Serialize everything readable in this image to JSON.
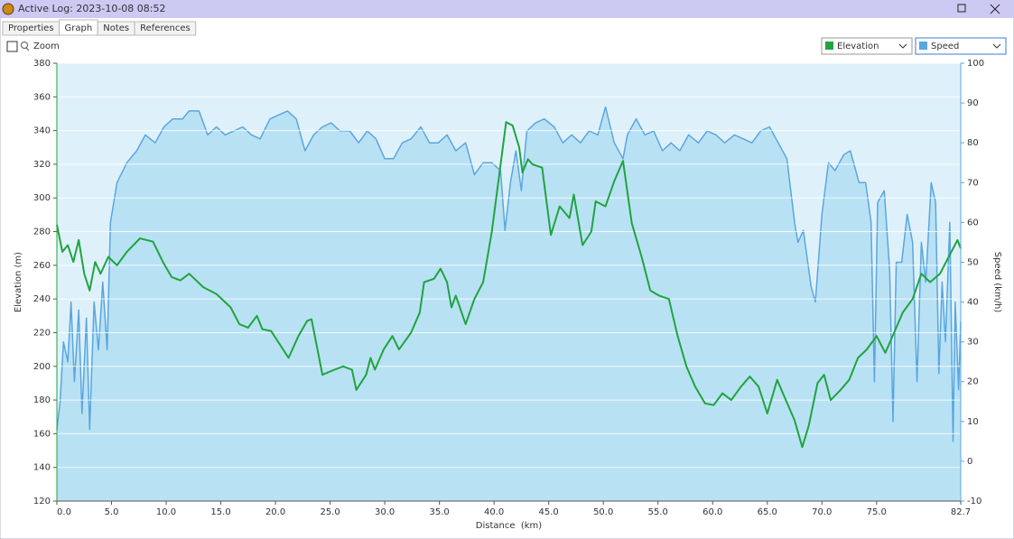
{
  "window_title": "Active Log: 2023-10-08 08:52",
  "tabs": [
    "Properties",
    "Graph",
    "Notes",
    "References"
  ],
  "zoom_label": "Zoom",
  "chart_data": {
    "type": "line",
    "xlabel": "Distance  (km)",
    "ylabel": "Elevation (m)",
    "y2label": "Speed (km/h)",
    "xlim": [
      0,
      82.7
    ],
    "xticks": [
      {
        "value": 0,
        "label": "0.0"
      },
      {
        "value": 5,
        "label": "5.0"
      },
      {
        "value": 10,
        "label": "10.0"
      },
      {
        "value": 15,
        "label": "15.0"
      },
      {
        "value": 20,
        "label": "20.0"
      },
      {
        "value": 25,
        "label": "25.0"
      },
      {
        "value": 30,
        "label": "30.0"
      },
      {
        "value": 35,
        "label": "35.0"
      },
      {
        "value": 40,
        "label": "40.0"
      },
      {
        "value": 45,
        "label": "45.0"
      },
      {
        "value": 50,
        "label": "50.0"
      },
      {
        "value": 55,
        "label": "55.0"
      },
      {
        "value": 60,
        "label": "60.0"
      },
      {
        "value": 65,
        "label": "65.0"
      },
      {
        "value": 70,
        "label": "70.0"
      },
      {
        "value": 75,
        "label": "75.0"
      },
      82.7
    ],
    "ylim": [
      120,
      380
    ],
    "yticks": [
      120,
      140,
      160,
      180,
      200,
      220,
      240,
      260,
      280,
      300,
      320,
      340,
      360,
      380
    ],
    "y2lim": [
      -10,
      100
    ],
    "y2ticks": [
      -10,
      0,
      10,
      20,
      30,
      40,
      50,
      60,
      70,
      80,
      90,
      100
    ],
    "grid": true,
    "series": [
      {
        "name": "Speed",
        "color": "#5aa6df",
        "fill": "#b3def2",
        "axis": "y2",
        "x": [
          0,
          0.3,
          0.6,
          1,
          1.3,
          1.6,
          2,
          2.3,
          2.7,
          3,
          3.4,
          3.8,
          4.2,
          4.6,
          4.9,
          5.5,
          6.4,
          7.3,
          8.1,
          9,
          9.8,
          10.6,
          11.5,
          12.1,
          13,
          13.8,
          14.6,
          15.4,
          16.2,
          17,
          17.8,
          18.6,
          19.5,
          20.3,
          21.1,
          21.9,
          22.7,
          23.5,
          24.3,
          25.1,
          25.9,
          26.8,
          27.6,
          28.4,
          29.2,
          30,
          30.8,
          31.6,
          32.4,
          33.3,
          34.1,
          34.9,
          35.7,
          36.5,
          37.4,
          38.2,
          39,
          39.8,
          40.6,
          41,
          41.5,
          42,
          42.5,
          43,
          43.8,
          44.6,
          45.5,
          46.3,
          47.1,
          47.9,
          48.7,
          49.5,
          50.2,
          51,
          51.8,
          52.2,
          53,
          53.8,
          54.6,
          55.4,
          56.2,
          57,
          57.8,
          58.7,
          59.5,
          60.3,
          61.1,
          62,
          62.8,
          63.6,
          64.4,
          65.2,
          66,
          66.8,
          67.5,
          67.8,
          68.3,
          69,
          69.4,
          70,
          70.6,
          71.2,
          72,
          72.6,
          73.4,
          74,
          74.5,
          74.8,
          75.1,
          75.7,
          76.2,
          76.5,
          76.8,
          77.3,
          77.8,
          78.3,
          78.7,
          79.1,
          79.5,
          80,
          80.4,
          80.7,
          81,
          81.3,
          81.7,
          82,
          82.2,
          82.5,
          82.7
        ],
        "values": [
          8,
          15,
          30,
          25,
          40,
          20,
          38,
          12,
          36,
          8,
          40,
          28,
          45,
          28,
          60,
          70,
          75,
          78,
          82,
          80,
          84,
          86,
          86,
          88,
          88,
          82,
          84,
          82,
          83,
          84,
          82,
          81,
          86,
          87,
          88,
          86,
          78,
          82,
          84,
          85,
          83,
          83,
          80,
          83,
          81,
          76,
          76,
          80,
          81,
          84,
          80,
          80,
          82,
          78,
          80,
          72,
          75,
          75,
          73,
          58,
          70,
          78,
          68,
          83,
          85,
          86,
          84,
          80,
          82,
          80,
          83,
          82,
          89,
          80,
          76,
          82,
          86,
          82,
          83,
          78,
          80,
          78,
          82,
          80,
          83,
          82,
          80,
          82,
          81,
          80,
          83,
          84,
          80,
          76,
          60,
          55,
          58,
          44,
          40,
          62,
          75,
          73,
          77,
          78,
          70,
          70,
          60,
          20,
          65,
          68,
          48,
          10,
          50,
          50,
          62,
          55,
          20,
          55,
          45,
          70,
          65,
          22,
          45,
          30,
          60,
          5,
          40,
          18,
          35
        ]
      },
      {
        "name": "Elevation",
        "color": "#1fa43f",
        "axis": "y",
        "x": [
          0,
          0.5,
          1,
          1.5,
          2,
          2.5,
          3,
          3.5,
          4,
          4.7,
          5.5,
          6.4,
          7.6,
          8.8,
          9.7,
          10.5,
          11.3,
          12.1,
          13.4,
          14.6,
          15.9,
          16.7,
          17.5,
          18.3,
          18.8,
          19.6,
          20.4,
          21.2,
          22.1,
          22.9,
          23.3,
          24.3,
          25.4,
          26.2,
          27,
          27.4,
          28.3,
          28.7,
          29.1,
          29.9,
          30.7,
          31.3,
          32.4,
          33.2,
          33.6,
          34.5,
          35.1,
          35.7,
          36.1,
          36.5,
          37.4,
          38.2,
          39,
          39.8,
          40.4,
          41.1,
          41.7,
          42.3,
          42.6,
          43.1,
          43.5,
          44.4,
          45.2,
          46,
          46.9,
          47.3,
          48.1,
          48.9,
          49.3,
          50.2,
          51,
          51.8,
          52.6,
          53.5,
          54.3,
          55.1,
          56,
          56.8,
          57.6,
          58.4,
          59.3,
          60.1,
          60.9,
          61.7,
          62.6,
          63.4,
          64.2,
          65,
          65.9,
          66.7,
          67.5,
          68.2,
          68.8,
          69.6,
          70.2,
          70.8,
          71.7,
          72.5,
          73.3,
          74.1,
          75,
          75.8,
          76.6,
          77.4,
          78.3,
          79.1,
          79.9,
          80.8,
          81.6,
          82.4,
          82.7
        ],
        "values": [
          284,
          268,
          272,
          262,
          275,
          255,
          245,
          262,
          255,
          265,
          260,
          268,
          276,
          274,
          262,
          253,
          251,
          255,
          247,
          243,
          235,
          225,
          223,
          230,
          222,
          221,
          213,
          205,
          218,
          227,
          228,
          195,
          198,
          200,
          198,
          186,
          195,
          205,
          198,
          210,
          218,
          210,
          220,
          232,
          250,
          252,
          258,
          250,
          235,
          242,
          225,
          240,
          250,
          280,
          310,
          345,
          343,
          330,
          315,
          323,
          320,
          318,
          278,
          295,
          288,
          302,
          272,
          280,
          298,
          295,
          310,
          322,
          285,
          265,
          245,
          242,
          240,
          218,
          200,
          188,
          178,
          177,
          184,
          180,
          188,
          194,
          188,
          172,
          192,
          180,
          168,
          152,
          165,
          190,
          195,
          180,
          186,
          192,
          205,
          210,
          218,
          208,
          220,
          232,
          240,
          255,
          250,
          255,
          265,
          275,
          270
        ]
      }
    ]
  }
}
